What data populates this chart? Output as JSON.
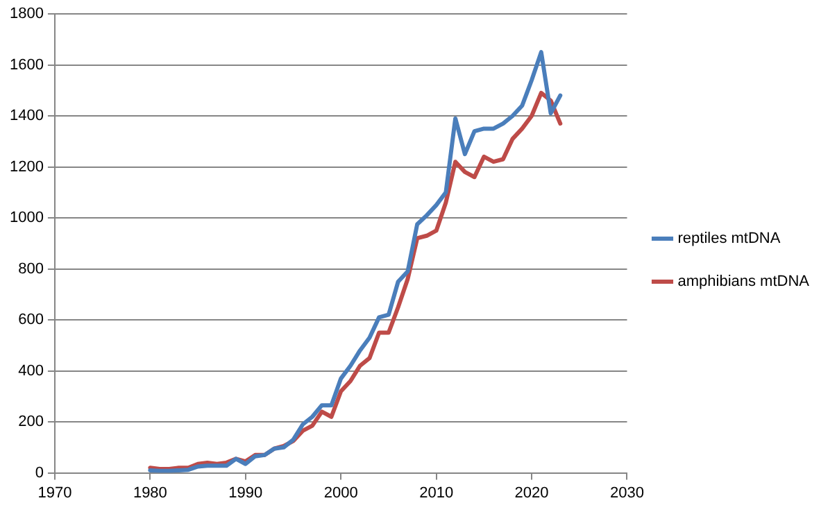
{
  "chart_data": {
    "type": "line",
    "x": [
      1980,
      1981,
      1982,
      1983,
      1984,
      1985,
      1986,
      1987,
      1988,
      1989,
      1990,
      1991,
      1992,
      1993,
      1994,
      1995,
      1996,
      1997,
      1998,
      1999,
      2000,
      2001,
      2002,
      2003,
      2004,
      2005,
      2006,
      2007,
      2008,
      2009,
      2010,
      2011,
      2012,
      2013,
      2014,
      2015,
      2016,
      2017,
      2018,
      2019,
      2020,
      2021,
      2022,
      2023
    ],
    "series": [
      {
        "name": "reptiles mtDNA",
        "color": "#4a7ebb",
        "values": [
          10,
          8,
          8,
          10,
          12,
          25,
          28,
          28,
          28,
          55,
          35,
          65,
          70,
          95,
          100,
          130,
          190,
          220,
          265,
          265,
          370,
          420,
          480,
          530,
          610,
          620,
          750,
          790,
          975,
          1010,
          1050,
          1100,
          1390,
          1250,
          1340,
          1350,
          1350,
          1370,
          1400,
          1440,
          1540,
          1650,
          1410,
          1480
        ]
      },
      {
        "name": "amphibians mtDNA",
        "color": "#be4b48",
        "values": [
          20,
          15,
          15,
          20,
          20,
          35,
          40,
          35,
          40,
          55,
          45,
          70,
          70,
          95,
          105,
          125,
          165,
          185,
          240,
          220,
          320,
          360,
          420,
          450,
          550,
          550,
          650,
          760,
          920,
          930,
          950,
          1060,
          1220,
          1180,
          1160,
          1240,
          1220,
          1230,
          1310,
          1350,
          1400,
          1490,
          1460,
          1370
        ]
      }
    ],
    "xlim": [
      1970,
      2030
    ],
    "xticks": [
      1970,
      1980,
      1990,
      2000,
      2010,
      2020,
      2030
    ],
    "ylim": [
      0,
      1800
    ],
    "yticks": [
      0,
      200,
      400,
      600,
      800,
      1000,
      1200,
      1400,
      1600,
      1800
    ],
    "grid": "y",
    "legend": "right",
    "marker": "none",
    "line_style": "solid"
  }
}
